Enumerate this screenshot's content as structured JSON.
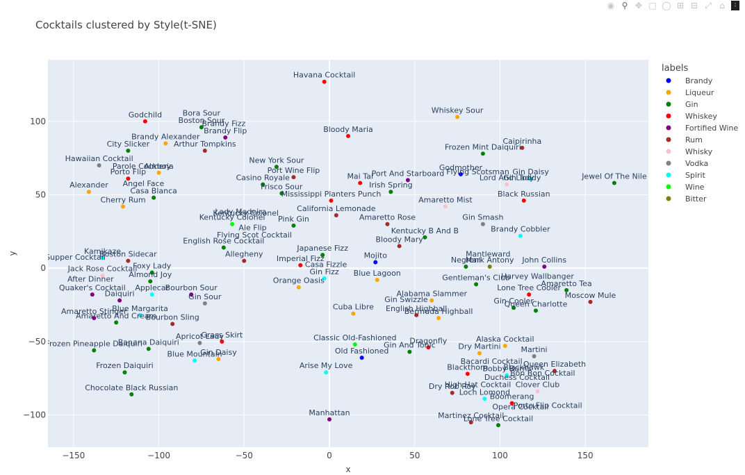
{
  "modebar": {
    "icons": [
      "camera-icon",
      "zoom-icon",
      "pan-icon",
      "box-select-icon",
      "lasso-icon",
      "zoom-in-icon",
      "zoom-out-icon",
      "autoscale-icon",
      "reset-axes-icon",
      "plotly-logo-icon"
    ]
  },
  "chart_data": {
    "type": "scatter",
    "title": "Cocktails clustered by Style(t-SNE)",
    "xlabel": "x",
    "ylabel": "y",
    "xlim": [
      -165,
      187
    ],
    "ylim": [
      -122,
      142
    ],
    "xticks": [
      -150,
      -100,
      -50,
      0,
      50,
      100,
      150
    ],
    "yticks": [
      -100,
      -50,
      0,
      50,
      100
    ],
    "grid": true,
    "legend_title": "labels",
    "legend_position": "right",
    "series": [
      {
        "name": "Brandy",
        "color": "#0000ff",
        "points": [
          {
            "x": 77,
            "y": 64,
            "label": "Godmother"
          },
          {
            "x": 27,
            "y": 4,
            "label": "Mojito"
          },
          {
            "x": 19,
            "y": -61,
            "label": "Old Fashioned"
          }
        ]
      },
      {
        "name": "Liqueur",
        "color": "#ffa500",
        "points": [
          {
            "x": 75,
            "y": 103,
            "label": "Whiskey Sour"
          },
          {
            "x": -96,
            "y": 85,
            "label": "Brandy Alexander"
          },
          {
            "x": -141,
            "y": 52,
            "label": "Alexander"
          },
          {
            "x": -121,
            "y": 42,
            "label": "Cherry Rum"
          },
          {
            "x": -100,
            "y": 65,
            "label": "Almeria"
          },
          {
            "x": -18,
            "y": -13,
            "label": "Orange Oasis"
          },
          {
            "x": 28,
            "y": -8,
            "label": "Blue Lagoon"
          },
          {
            "x": 14,
            "y": -31,
            "label": "Cuba Libre"
          },
          {
            "x": 64,
            "y": -34,
            "label": "Bermuda Highball"
          },
          {
            "x": 60,
            "y": -22,
            "label": "Alabama Slammer"
          },
          {
            "x": -65,
            "y": -62,
            "label": "Gin Daisy"
          },
          {
            "x": 103,
            "y": -53,
            "label": "Alaska Cocktail"
          },
          {
            "x": 88,
            "y": -58,
            "label": "Dry Martini"
          }
        ]
      },
      {
        "name": "Gin",
        "color": "#008000",
        "points": [
          {
            "x": -75,
            "y": 96,
            "label": "Boston Sour"
          },
          {
            "x": -118,
            "y": 80,
            "label": "City Slicker"
          },
          {
            "x": -103,
            "y": 48,
            "label": "Casa Blanca"
          },
          {
            "x": -31,
            "y": 69,
            "label": "New York Sour"
          },
          {
            "x": -39,
            "y": 57,
            "label": "Casino Royale"
          },
          {
            "x": -28,
            "y": 51,
            "label": "Frisco Sour"
          },
          {
            "x": 90,
            "y": 78,
            "label": "Frozen Mint Daiquiri"
          },
          {
            "x": 36,
            "y": 52,
            "label": "Irish Spring"
          },
          {
            "x": 167,
            "y": 58,
            "label": "Jewel Of The Nile"
          },
          {
            "x": -21,
            "y": 29,
            "label": "Pink Gin"
          },
          {
            "x": -62,
            "y": 14,
            "label": "English Rose Cocktail"
          },
          {
            "x": -4,
            "y": 9,
            "label": "Japanese Fizz"
          },
          {
            "x": 56,
            "y": 21,
            "label": "Kentucky B And B"
          },
          {
            "x": 80,
            "y": 1,
            "label": "Negroni"
          },
          {
            "x": 86,
            "y": -11,
            "label": "Gentleman's Club"
          },
          {
            "x": 139,
            "y": -15,
            "label": "Amaretto Tea"
          },
          {
            "x": 108,
            "y": -27,
            "label": "Gin Cooler"
          },
          {
            "x": 121,
            "y": -29,
            "label": "Queen Charlotte"
          },
          {
            "x": -104,
            "y": -3,
            "label": "Foxy Lady"
          },
          {
            "x": -105,
            "y": -9,
            "label": "Almond Joy"
          },
          {
            "x": -125,
            "y": -37,
            "label": "Amaretto And Cream"
          },
          {
            "x": -138,
            "y": -56,
            "label": "Frozen Pineapple Daiquiri"
          },
          {
            "x": -106,
            "y": -55,
            "label": "Banana Daiquiri"
          },
          {
            "x": -120,
            "y": -71,
            "label": "Frozen Daiquiri"
          },
          {
            "x": -116,
            "y": -86,
            "label": "Chocolate Black Russian"
          },
          {
            "x": 47,
            "y": -57,
            "label": "Gin And Tonic"
          },
          {
            "x": 99,
            "y": -107,
            "label": "Lone Tree Cocktail"
          }
        ]
      },
      {
        "name": "Whiskey",
        "color": "#ff0000",
        "points": [
          {
            "x": -3,
            "y": 127,
            "label": "Havana Cocktail"
          },
          {
            "x": -108,
            "y": 100,
            "label": "Godchild"
          },
          {
            "x": 11,
            "y": 90,
            "label": "Bloody Maria"
          },
          {
            "x": -118,
            "y": 61,
            "label": "Porto Flip"
          },
          {
            "x": 114,
            "y": 46,
            "label": "Black Russian"
          },
          {
            "x": 1,
            "y": 46,
            "label": "Mississippi Planters Punch"
          },
          {
            "x": 18,
            "y": 58,
            "label": "Mai Tai"
          },
          {
            "x": -17,
            "y": 2,
            "label": "Imperial Fizz"
          },
          {
            "x": 117,
            "y": -18,
            "label": "Lone Tree Cooler"
          },
          {
            "x": -63,
            "y": -50,
            "label": "Grass Skirt"
          },
          {
            "x": 58,
            "y": -54,
            "label": "Dragonfly"
          },
          {
            "x": 81,
            "y": -72,
            "label": "Blackthorn"
          },
          {
            "x": 107,
            "y": -92,
            "label": "Boomerang"
          }
        ]
      },
      {
        "name": "Fortified Wine",
        "color": "#800080",
        "points": [
          {
            "x": -61,
            "y": 89,
            "label": "Brandy Flip"
          },
          {
            "x": 46,
            "y": 60,
            "label": "Port And Starboard"
          },
          {
            "x": 126,
            "y": 1,
            "label": "John Collins"
          },
          {
            "x": -139,
            "y": -18,
            "label": "Quaker's Cocktail"
          },
          {
            "x": -123,
            "y": -22,
            "label": "Daiquiri"
          },
          {
            "x": -138,
            "y": -34,
            "label": "Amaretto Stinger"
          },
          {
            "x": -81,
            "y": -18,
            "label": "Bourbon Sour"
          },
          {
            "x": 0,
            "y": -103,
            "label": "Manhattan"
          }
        ]
      },
      {
        "name": "Rum",
        "color": "#a52a2a",
        "points": [
          {
            "x": -73,
            "y": 80,
            "label": "Arthur Tompkins"
          },
          {
            "x": 113,
            "y": 82,
            "label": "Caipirinha"
          },
          {
            "x": -21,
            "y": 62,
            "label": "Port Wine Flip"
          },
          {
            "x": 4,
            "y": 36,
            "label": "California Lemonade"
          },
          {
            "x": 34,
            "y": 30,
            "label": "Amaretto Rose"
          },
          {
            "x": 41,
            "y": 15,
            "label": "Bloody Mary"
          },
          {
            "x": -50,
            "y": 5,
            "label": "Allegheny"
          },
          {
            "x": -118,
            "y": 5,
            "label": "Boston Sidecar"
          },
          {
            "x": -92,
            "y": -38,
            "label": "Bourbon Sling"
          },
          {
            "x": 51,
            "y": -32,
            "label": "English Highball"
          },
          {
            "x": 153,
            "y": -23,
            "label": "Moscow Mule"
          },
          {
            "x": 132,
            "y": -70,
            "label": "Queen Elizabeth"
          },
          {
            "x": 72,
            "y": -85,
            "label": "Dry Rob Roy"
          },
          {
            "x": 83,
            "y": -105,
            "label": "Martinez Cocktail"
          }
        ]
      },
      {
        "name": "Whisky",
        "color": "#ffc0cb",
        "points": [
          {
            "x": 68,
            "y": 42,
            "label": "Amaretto Mist"
          },
          {
            "x": 104,
            "y": 57,
            "label": "Lord And Lady"
          },
          {
            "x": -133,
            "y": -5,
            "label": "Jack Rose Cocktail"
          },
          {
            "x": 122,
            "y": -84,
            "label": "Clover Club"
          }
        ]
      },
      {
        "name": "Vodka",
        "color": "#808080",
        "points": [
          {
            "x": -135,
            "y": 70,
            "label": "Hawaiian Cocktail"
          },
          {
            "x": 90,
            "y": 30,
            "label": "Gin Smash"
          },
          {
            "x": -73,
            "y": -24,
            "label": "Gin Sour"
          },
          {
            "x": -76,
            "y": -51,
            "label": "Apricot Lady"
          },
          {
            "x": 120,
            "y": -60,
            "label": "Martini"
          }
        ]
      },
      {
        "name": "Spirit",
        "color": "#00ffff",
        "points": [
          {
            "x": 118,
            "y": 61,
            "label": "Gin Daisy"
          },
          {
            "x": 112,
            "y": 22,
            "label": "Brandy Cobbler"
          },
          {
            "x": -133,
            "y": 7,
            "label": "Kamikaze"
          },
          {
            "x": -104,
            "y": -18,
            "label": "Applecar"
          },
          {
            "x": -111,
            "y": -32,
            "label": "Blue Margarita"
          },
          {
            "x": -3,
            "y": -7,
            "label": "Gin Fizz"
          },
          {
            "x": -79,
            "y": -63,
            "label": "Blue Mountain"
          },
          {
            "x": -2,
            "y": -71,
            "label": "Arise My Love"
          },
          {
            "x": 104,
            "y": -73,
            "label": "Bobby Burns"
          },
          {
            "x": 91,
            "y": -89,
            "label": "Loch Lomond"
          }
        ]
      },
      {
        "name": "Wine",
        "color": "#00ff00",
        "points": [
          {
            "x": -57,
            "y": 30,
            "label": "Kentucky Colonel"
          },
          {
            "x": 15,
            "y": -52,
            "label": "Classic Old-Fashioned"
          }
        ]
      },
      {
        "name": "Bitter",
        "color": "#808000",
        "points": [
          {
            "x": 94,
            "y": 1,
            "label": "Mark Antony"
          }
        ]
      }
    ],
    "extra_annotations": [
      {
        "x": -75,
        "y": 101,
        "label": "Bora Sour"
      },
      {
        "x": -62,
        "y": 94,
        "label": "Brandy Fizz"
      },
      {
        "x": -110,
        "y": 65,
        "label": "Parole Cockboy"
      },
      {
        "x": -109,
        "y": 53,
        "label": "Angel Face"
      },
      {
        "x": 87,
        "y": 61,
        "label": "Flying Scotsman"
      },
      {
        "x": 113,
        "y": 57,
        "label": "Gin Toddy"
      },
      {
        "x": -52,
        "y": 34,
        "label": "Lady Madeira"
      },
      {
        "x": -45,
        "y": 23,
        "label": "Ale Flip"
      },
      {
        "x": -44,
        "y": 18,
        "label": "Flying Scot Cocktail"
      },
      {
        "x": -2,
        "y": -2,
        "label": "Casa Fizzle"
      },
      {
        "x": 93,
        "y": 5,
        "label": "Mantleward"
      },
      {
        "x": -140,
        "y": -12,
        "label": "After Dinner"
      },
      {
        "x": -155,
        "y": 3,
        "label": "After Supper Cocktail"
      },
      {
        "x": 45,
        "y": -26,
        "label": "Gin Swizzle"
      },
      {
        "x": 122,
        "y": -10,
        "label": "Harvey Wallbanger"
      },
      {
        "x": 95,
        "y": -68,
        "label": "Bacardi Cocktail"
      },
      {
        "x": 114,
        "y": -72,
        "label": "Blackhawk"
      },
      {
        "x": 87,
        "y": -84,
        "label": "High Hat Cocktail"
      },
      {
        "x": 110,
        "y": -79,
        "label": "Duchess Cocktail"
      },
      {
        "x": 125,
        "y": -76,
        "label": "Bon Bon Cocktail"
      },
      {
        "x": 112,
        "y": -99,
        "label": "Opera Cocktail"
      },
      {
        "x": 128,
        "y": -98,
        "label": "Porto Flip Cocktail"
      },
      {
        "x": -49,
        "y": 33,
        "label": "Kentucky Colonel"
      }
    ]
  }
}
